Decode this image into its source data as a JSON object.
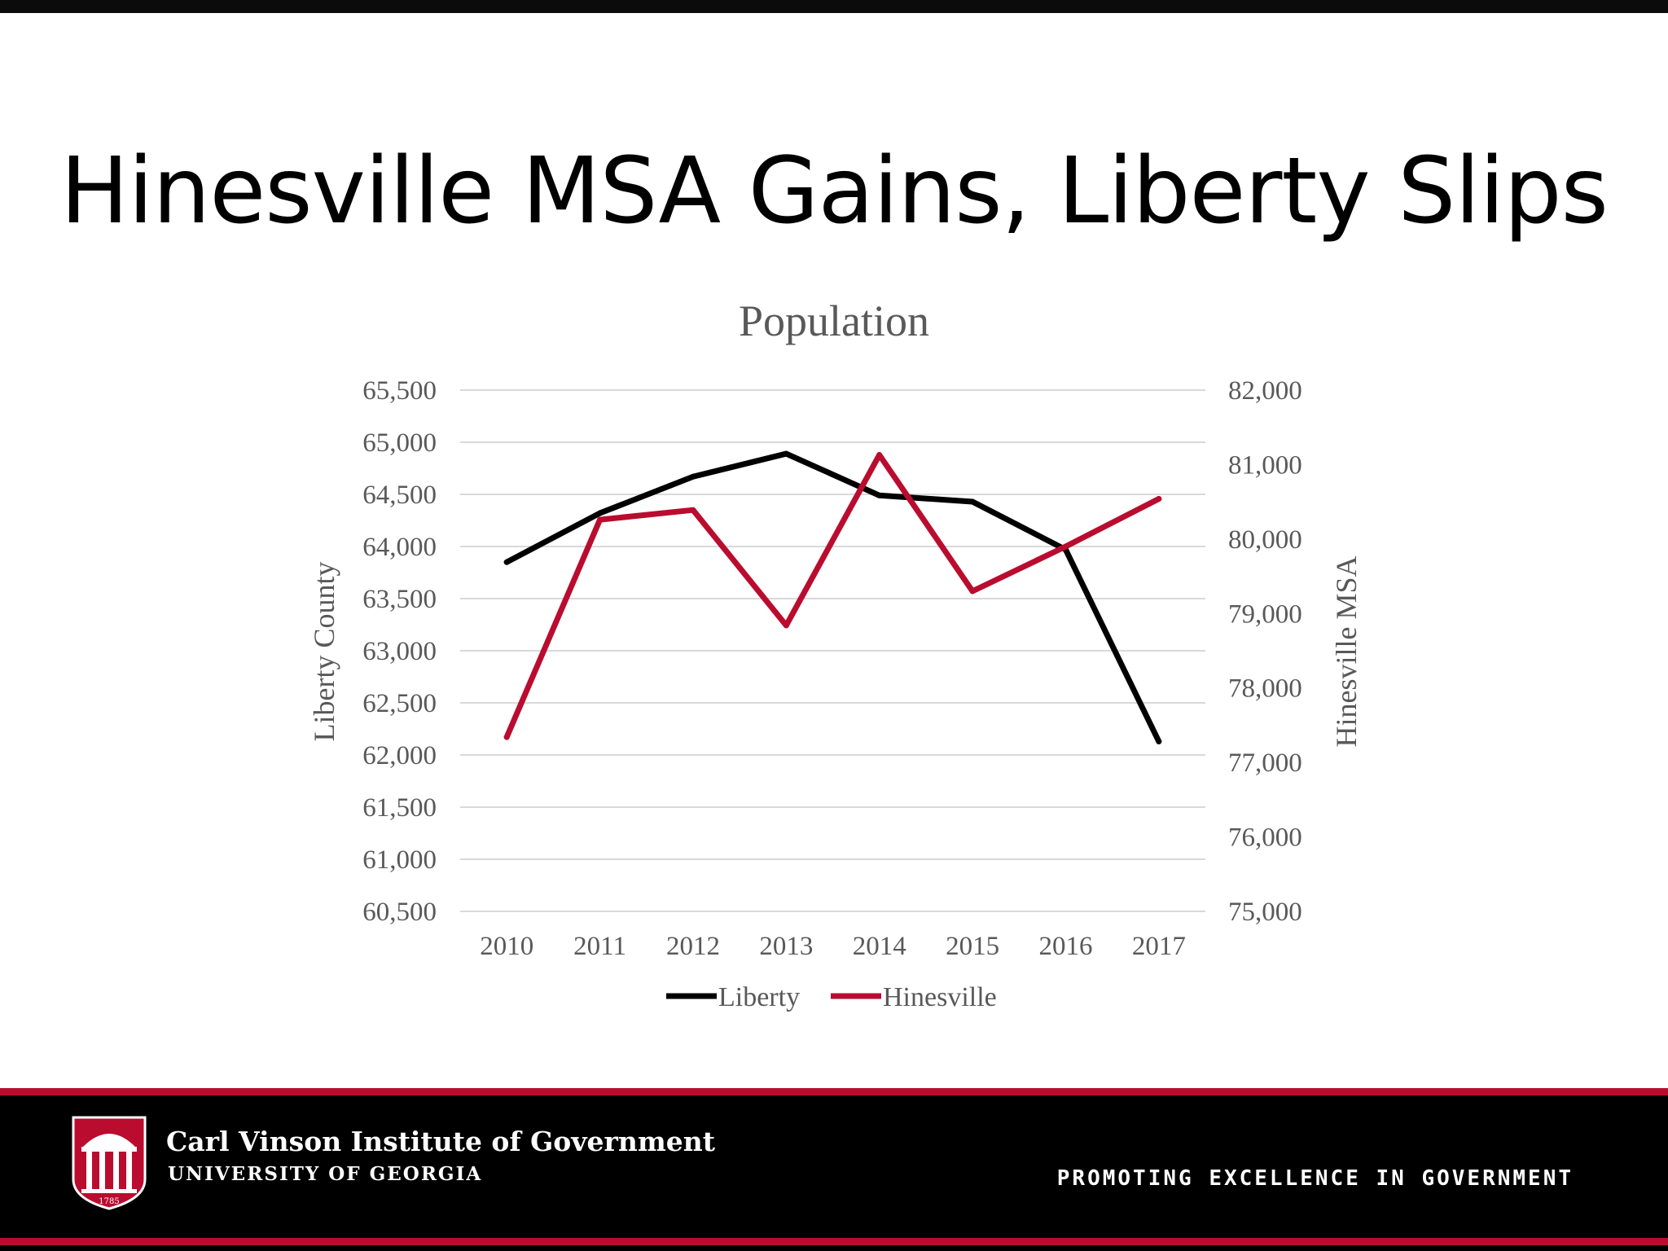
{
  "slide": {
    "title": "Hinesville MSA Gains, Liberty Slips"
  },
  "chart_data": {
    "type": "line",
    "title": "Population",
    "categories": [
      "2010",
      "2011",
      "2012",
      "2013",
      "2014",
      "2015",
      "2016",
      "2017"
    ],
    "y_left": {
      "label": "Liberty County",
      "ylim": [
        60500,
        65500
      ],
      "ticks": [
        "60,500",
        "61,000",
        "61,500",
        "62,000",
        "62,500",
        "63,000",
        "63,500",
        "64,000",
        "64,500",
        "65,000",
        "65,500"
      ]
    },
    "y_right": {
      "label": "Hinesville MSA",
      "ylim": [
        75000,
        82000
      ],
      "ticks": [
        "75,000",
        "76,000",
        "77,000",
        "78,000",
        "79,000",
        "80,000",
        "81,000",
        "82,000"
      ]
    },
    "series": [
      {
        "name": "Liberty",
        "axis": "left",
        "color": "#000000",
        "values": [
          63850,
          64320,
          64670,
          64890,
          64490,
          64430,
          63970,
          62130
        ]
      },
      {
        "name": "Hinesville",
        "axis": "right",
        "color": "#ba0c2f",
        "values": [
          77340,
          80260,
          80390,
          78840,
          81130,
          79300,
          79900,
          80540
        ]
      }
    ],
    "grid": true,
    "legend_position": "bottom"
  },
  "footer": {
    "org_name": "Carl Vinson Institute of Government",
    "org_sub": "UNIVERSITY OF GEORGIA",
    "tagline": "PROMOTING EXCELLENCE IN GOVERNMENT",
    "logo_year": "1785",
    "accent_color": "#ba0c2f"
  }
}
